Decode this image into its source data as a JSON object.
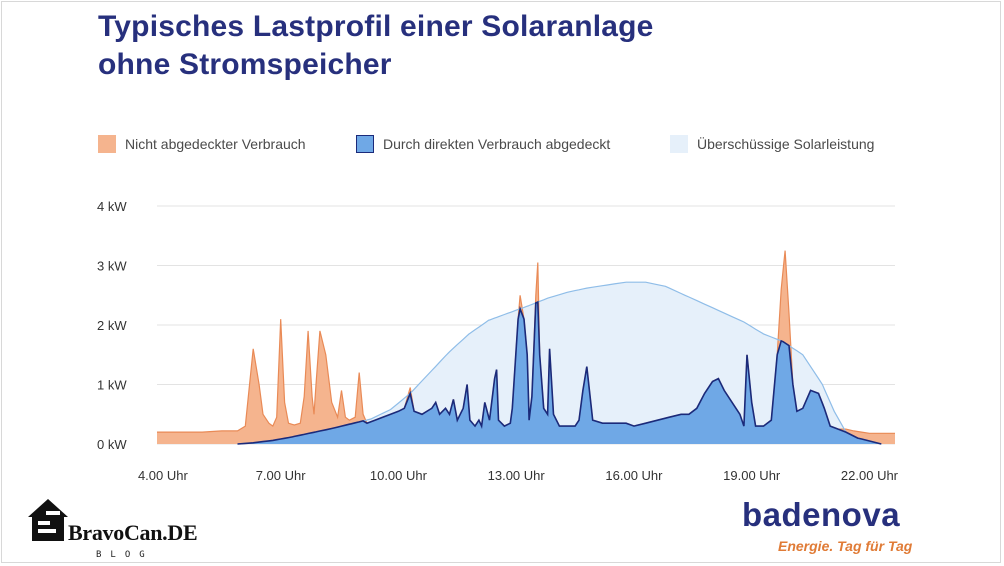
{
  "colors": {
    "title": "#27307d",
    "uncovered": "#f5b48e",
    "uncovered_line": "#e98a56",
    "covered": "#6fa8e6",
    "covered_line": "#1b2a7a",
    "surplus": "#e6f0fa",
    "surplus_line": "#8fbde8",
    "grid": "#e3e3e3",
    "brand": "#27307d",
    "slogan": "#e07b36"
  },
  "chart_data": {
    "type": "area",
    "title": "Typisches Lastprofil einer Solaranlage ohne Stromspeicher",
    "title_lines": [
      "Typisches Lastprofil einer Solaranlage",
      "ohne Stromspeicher"
    ],
    "legend": [
      {
        "key": "uncovered",
        "label": "Nicht abgedeckter Verbrauch"
      },
      {
        "key": "covered",
        "label": "Durch direkten Verbrauch abgedeckt"
      },
      {
        "key": "surplus",
        "label": "Überschüssige Solarleistung"
      }
    ],
    "legend_position": "top",
    "grid": true,
    "xlim": [
      3.85,
      22.65
    ],
    "ylim": [
      0,
      4
    ],
    "x_ticks": [
      {
        "value": 4,
        "label": "4.00 Uhr"
      },
      {
        "value": 7,
        "label": "7.00 Uhr"
      },
      {
        "value": 10,
        "label": "10.00 Uhr"
      },
      {
        "value": 13,
        "label": "13.00 Uhr"
      },
      {
        "value": 16,
        "label": "16.00 Uhr"
      },
      {
        "value": 19,
        "label": "19.00 Uhr"
      },
      {
        "value": 22,
        "label": "22.00 Uhr"
      }
    ],
    "y_ticks": [
      {
        "value": 0,
        "label": "0 kW"
      },
      {
        "value": 1,
        "label": "1 kW"
      },
      {
        "value": 2,
        "label": "2 kW"
      },
      {
        "value": 3,
        "label": "3 kW"
      },
      {
        "value": 4,
        "label": "4 kW"
      }
    ],
    "series": [
      {
        "key": "consumption",
        "points": [
          [
            3.85,
            0.2
          ],
          [
            5.0,
            0.2
          ],
          [
            5.5,
            0.22
          ],
          [
            5.9,
            0.22
          ],
          [
            6.1,
            0.3
          ],
          [
            6.3,
            1.6
          ],
          [
            6.45,
            1.0
          ],
          [
            6.55,
            0.5
          ],
          [
            6.7,
            0.35
          ],
          [
            6.8,
            0.3
          ],
          [
            6.9,
            0.45
          ],
          [
            7.0,
            2.1
          ],
          [
            7.1,
            0.7
          ],
          [
            7.2,
            0.35
          ],
          [
            7.35,
            0.32
          ],
          [
            7.5,
            0.35
          ],
          [
            7.6,
            0.8
          ],
          [
            7.7,
            1.9
          ],
          [
            7.8,
            0.8
          ],
          [
            7.85,
            0.5
          ],
          [
            7.9,
            1.0
          ],
          [
            8.0,
            1.9
          ],
          [
            8.15,
            1.5
          ],
          [
            8.3,
            0.7
          ],
          [
            8.45,
            0.45
          ],
          [
            8.55,
            0.9
          ],
          [
            8.65,
            0.45
          ],
          [
            8.75,
            0.4
          ],
          [
            8.9,
            0.45
          ],
          [
            9.0,
            1.2
          ],
          [
            9.1,
            0.5
          ],
          [
            9.2,
            0.35
          ],
          [
            9.4,
            0.4
          ],
          [
            9.6,
            0.45
          ],
          [
            9.8,
            0.5
          ],
          [
            10.0,
            0.55
          ],
          [
            10.15,
            0.6
          ],
          [
            10.3,
            0.95
          ],
          [
            10.4,
            0.55
          ],
          [
            10.6,
            0.5
          ],
          [
            10.85,
            0.6
          ],
          [
            10.95,
            0.7
          ],
          [
            11.05,
            0.5
          ],
          [
            11.2,
            0.6
          ],
          [
            11.3,
            0.5
          ],
          [
            11.4,
            0.75
          ],
          [
            11.5,
            0.4
          ],
          [
            11.65,
            0.6
          ],
          [
            11.75,
            1.0
          ],
          [
            11.82,
            0.4
          ],
          [
            11.95,
            0.3
          ],
          [
            12.05,
            0.4
          ],
          [
            12.12,
            0.3
          ],
          [
            12.2,
            0.7
          ],
          [
            12.32,
            0.4
          ],
          [
            12.45,
            1.1
          ],
          [
            12.5,
            1.25
          ],
          [
            12.55,
            0.4
          ],
          [
            12.7,
            0.3
          ],
          [
            12.85,
            0.35
          ],
          [
            12.9,
            0.6
          ],
          [
            13.05,
            2.1
          ],
          [
            13.1,
            2.5
          ],
          [
            13.2,
            2.1
          ],
          [
            13.28,
            1.5
          ],
          [
            13.33,
            0.4
          ],
          [
            13.4,
            0.8
          ],
          [
            13.5,
            2.5
          ],
          [
            13.55,
            3.05
          ],
          [
            13.6,
            1.5
          ],
          [
            13.7,
            0.6
          ],
          [
            13.8,
            0.5
          ],
          [
            13.85,
            1.6
          ],
          [
            13.95,
            0.5
          ],
          [
            14.1,
            0.3
          ],
          [
            14.3,
            0.3
          ],
          [
            14.5,
            0.3
          ],
          [
            14.6,
            0.4
          ],
          [
            14.7,
            0.9
          ],
          [
            14.8,
            1.3
          ],
          [
            14.95,
            0.4
          ],
          [
            15.2,
            0.35
          ],
          [
            15.5,
            0.35
          ],
          [
            15.8,
            0.35
          ],
          [
            16.0,
            0.3
          ],
          [
            16.3,
            0.35
          ],
          [
            16.6,
            0.4
          ],
          [
            16.9,
            0.45
          ],
          [
            17.2,
            0.5
          ],
          [
            17.4,
            0.5
          ],
          [
            17.6,
            0.6
          ],
          [
            17.8,
            0.85
          ],
          [
            18.0,
            1.05
          ],
          [
            18.15,
            1.1
          ],
          [
            18.3,
            0.9
          ],
          [
            18.5,
            0.7
          ],
          [
            18.7,
            0.5
          ],
          [
            18.8,
            0.3
          ],
          [
            18.88,
            1.5
          ],
          [
            19.0,
            0.7
          ],
          [
            19.1,
            0.3
          ],
          [
            19.3,
            0.3
          ],
          [
            19.5,
            0.4
          ],
          [
            19.65,
            1.5
          ],
          [
            19.75,
            2.6
          ],
          [
            19.85,
            3.25
          ],
          [
            19.95,
            2.2
          ],
          [
            20.05,
            1.0
          ],
          [
            20.15,
            0.55
          ],
          [
            20.3,
            0.6
          ],
          [
            20.5,
            0.9
          ],
          [
            20.7,
            0.85
          ],
          [
            20.85,
            0.6
          ],
          [
            21.0,
            0.3
          ],
          [
            21.2,
            0.25
          ],
          [
            21.4,
            0.25
          ],
          [
            21.6,
            0.22
          ],
          [
            21.8,
            0.2
          ],
          [
            22.0,
            0.18
          ],
          [
            22.3,
            0.18
          ],
          [
            22.65,
            0.18
          ]
        ]
      },
      {
        "key": "solar",
        "points": [
          [
            5.9,
            0.0
          ],
          [
            6.3,
            0.02
          ],
          [
            6.8,
            0.06
          ],
          [
            7.3,
            0.12
          ],
          [
            7.8,
            0.19
          ],
          [
            8.3,
            0.26
          ],
          [
            8.8,
            0.34
          ],
          [
            9.3,
            0.42
          ],
          [
            9.8,
            0.58
          ],
          [
            10.3,
            0.85
          ],
          [
            10.8,
            1.2
          ],
          [
            11.3,
            1.55
          ],
          [
            11.8,
            1.85
          ],
          [
            12.3,
            2.08
          ],
          [
            12.8,
            2.2
          ],
          [
            13.3,
            2.32
          ],
          [
            13.8,
            2.45
          ],
          [
            14.3,
            2.55
          ],
          [
            14.8,
            2.62
          ],
          [
            15.3,
            2.67
          ],
          [
            15.8,
            2.72
          ],
          [
            16.3,
            2.72
          ],
          [
            16.8,
            2.65
          ],
          [
            17.3,
            2.5
          ],
          [
            17.8,
            2.35
          ],
          [
            18.3,
            2.2
          ],
          [
            18.8,
            2.05
          ],
          [
            19.3,
            1.85
          ],
          [
            19.8,
            1.72
          ],
          [
            20.3,
            1.5
          ],
          [
            20.8,
            1.0
          ],
          [
            21.1,
            0.55
          ],
          [
            21.4,
            0.2
          ],
          [
            21.7,
            0.1
          ],
          [
            22.0,
            0.05
          ],
          [
            22.3,
            0.0
          ]
        ]
      }
    ]
  },
  "brand": {
    "name": "badenova",
    "slogan": "Energie. Tag für Tag"
  },
  "watermark": {
    "name": "BravoCan.DE",
    "sub": "BLOG"
  }
}
